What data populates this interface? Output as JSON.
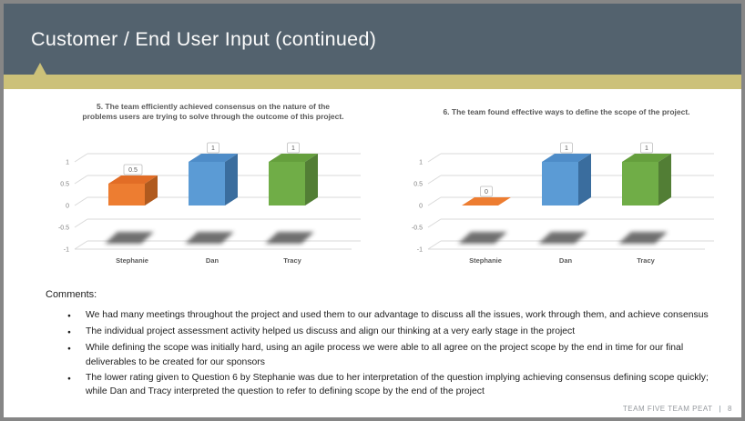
{
  "slide": {
    "title": "Customer / End User Input (continued)",
    "footer": {
      "team": "TEAM FIVE TEAM PEAT",
      "separator": "|",
      "page": "8"
    }
  },
  "colors": {
    "header_background": "#53626E",
    "accent_band": "#CCC179",
    "title_text": "#FFFFFF",
    "chart_title_text": "#595959",
    "gridline": "#D9D9D9",
    "tick_label": "#808080",
    "footer_text": "#95999E"
  },
  "chart_data": [
    {
      "type": "bar",
      "variant": "3d-column",
      "title": "5. The team efficiently achieved consensus on the nature of the problems users are trying to solve through the outcome of this project.",
      "title_lines": [
        "5. The team efficiently achieved consensus on the nature of the",
        "problems users are trying to solve through the outcome of this project."
      ],
      "categories": [
        "Stephanie",
        "Dan",
        "Tracy"
      ],
      "values": [
        0.5,
        1,
        1
      ],
      "data_labels": [
        "0.5",
        "1",
        "1"
      ],
      "yticks": [
        1,
        0.5,
        0,
        -0.5,
        -1
      ],
      "ylim": [
        -1,
        1
      ],
      "grid": true,
      "legend": "none",
      "series_colors": [
        {
          "front": "#ED7D31",
          "top": "#E26D26",
          "side": "#B05A1E"
        },
        {
          "front": "#5B9BD5",
          "top": "#4E8CC8",
          "side": "#3A6D9E"
        },
        {
          "front": "#70AD47",
          "top": "#659F3D",
          "side": "#527E35"
        }
      ]
    },
    {
      "type": "bar",
      "variant": "3d-column",
      "title": "6. The team found effective ways to define the scope of the project.",
      "title_lines": [
        "6. The team found effective ways to define the scope of the project."
      ],
      "categories": [
        "Stephanie",
        "Dan",
        "Tracy"
      ],
      "values": [
        0,
        1,
        1
      ],
      "data_labels": [
        "0",
        "1",
        "1"
      ],
      "yticks": [
        1,
        0.5,
        0,
        -0.5,
        -1
      ],
      "ylim": [
        -1,
        1
      ],
      "grid": true,
      "legend": "none",
      "series_colors": [
        {
          "front": "#ED7D31",
          "top": "#E26D26",
          "side": "#B05A1E"
        },
        {
          "front": "#5B9BD5",
          "top": "#4E8CC8",
          "side": "#3A6D9E"
        },
        {
          "front": "#70AD47",
          "top": "#659F3D",
          "side": "#527E35"
        }
      ]
    }
  ],
  "comments": {
    "heading": "Comments:",
    "bullet_char": "●",
    "bullets": [
      "We had many meetings throughout the project and used them to our advantage to discuss all the issues, work through them, and achieve consensus",
      "The individual project assessment activity helped us discuss and align our thinking at a very early stage in the project",
      "While defining the scope was initially hard, using an agile process we were able to all agree on the project scope by the end in time for our final deliverables to be created for our sponsors",
      "The lower rating given to Question 6 by Stephanie was due to her interpretation of the question implying achieving consensus defining scope quickly; while Dan and Tracy interpreted the question to refer to defining scope by the end of the project"
    ]
  }
}
